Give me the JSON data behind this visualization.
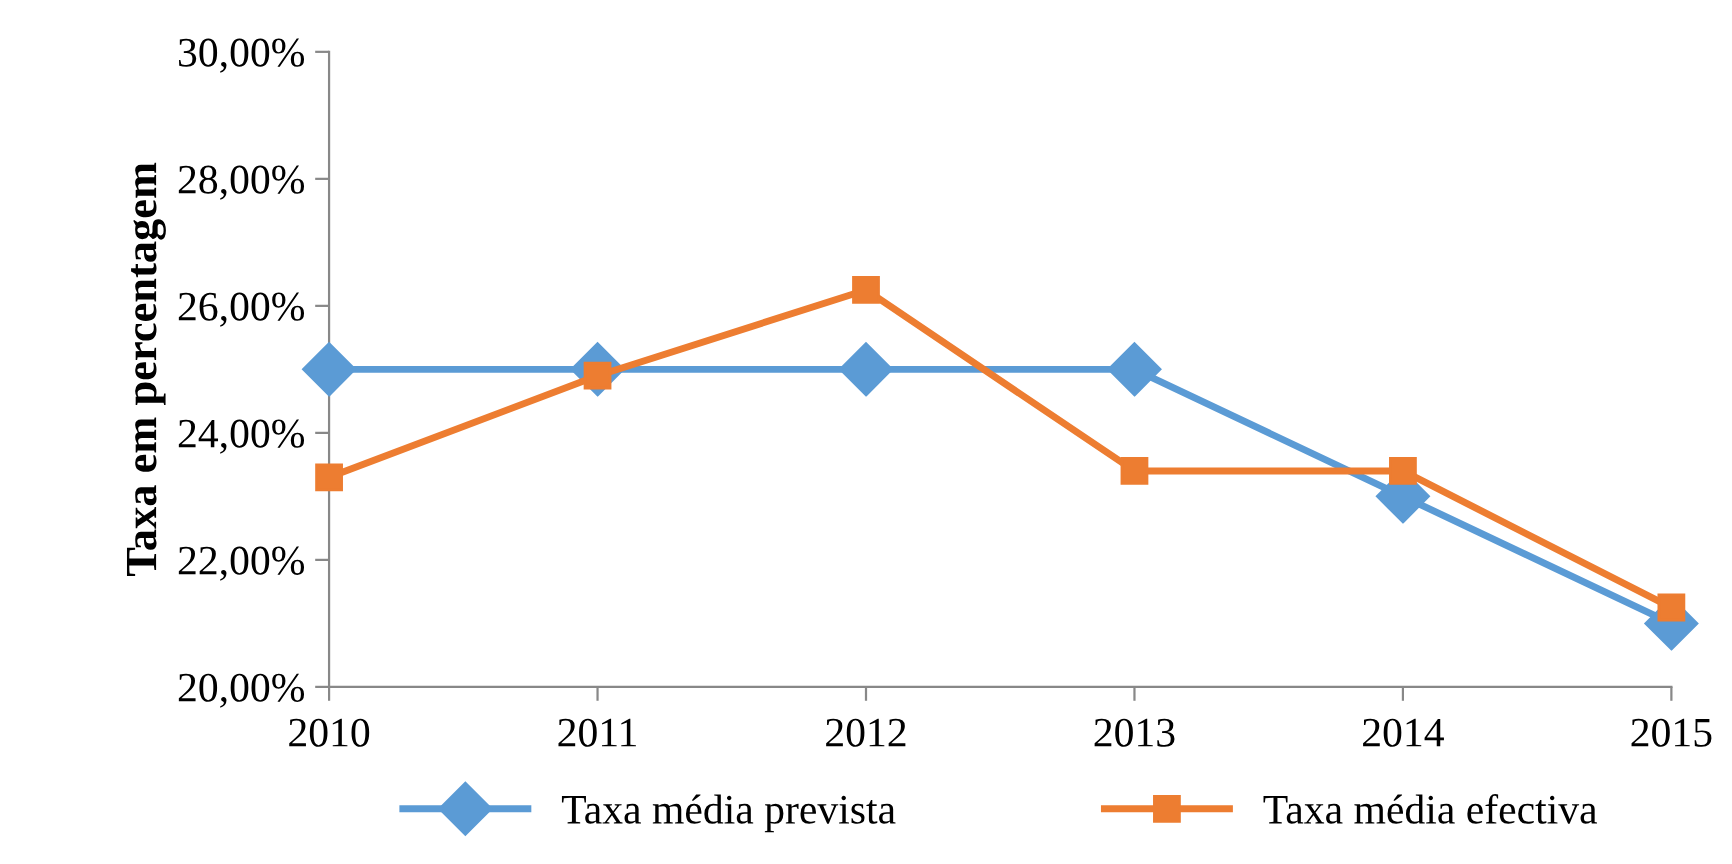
{
  "chart_data": {
    "type": "line",
    "ylabel": "Taxa em percentagem",
    "x": [
      2010,
      2011,
      2012,
      2013,
      2014,
      2015
    ],
    "xlim": [
      2010,
      2015
    ],
    "xticks": [
      2010,
      2011,
      2012,
      2013,
      2014,
      2015
    ],
    "ylim": [
      20,
      30
    ],
    "yticks": [
      {
        "value": 20,
        "label": "20,00%"
      },
      {
        "value": 22,
        "label": "22,00%"
      },
      {
        "value": 24,
        "label": "24,00%"
      },
      {
        "value": 26,
        "label": "26,00%"
      },
      {
        "value": 28,
        "label": "28,00%"
      },
      {
        "value": 30,
        "label": "30,00%"
      }
    ],
    "series": [
      {
        "name": "Taxa média prevista",
        "color": "#5b9bd5",
        "marker": "diamond",
        "values": [
          25,
          25,
          25,
          25,
          23,
          21
        ]
      },
      {
        "name": "Taxa média efectiva",
        "color": "#ed7d31",
        "marker": "square",
        "values": [
          23.3,
          24.9,
          26.25,
          23.4,
          23.4,
          21.25
        ]
      }
    ],
    "grid": false,
    "legend": "bottom",
    "line_style": "solid"
  }
}
